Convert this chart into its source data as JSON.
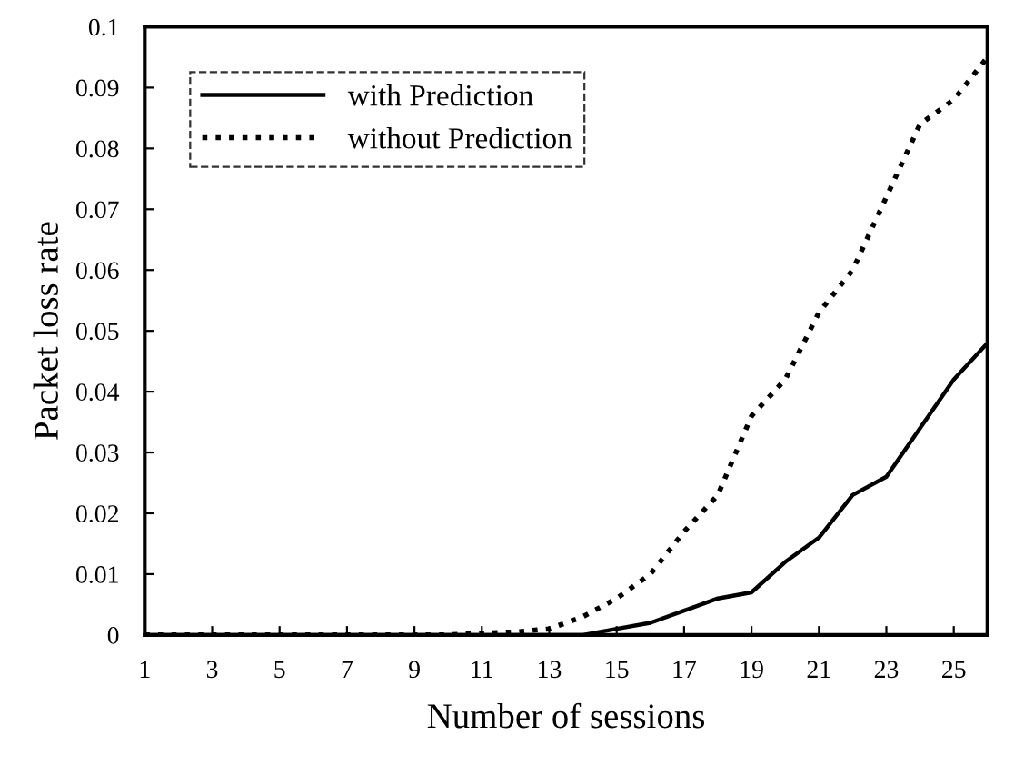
{
  "chart_data": {
    "type": "line",
    "xlabel": "Number of sessions",
    "ylabel": "Packet loss rate",
    "x": [
      1,
      2,
      3,
      4,
      5,
      6,
      7,
      8,
      9,
      10,
      11,
      12,
      13,
      14,
      15,
      16,
      17,
      18,
      19,
      20,
      21,
      22,
      23,
      24,
      25,
      26
    ],
    "series": [
      {
        "name": "with Prediction",
        "color": "#000000",
        "line_style": "solid",
        "values": [
          0,
          0,
          0,
          0,
          0,
          0,
          0,
          0,
          0,
          0,
          0,
          0,
          0,
          0,
          0.001,
          0.002,
          0.004,
          0.006,
          0.007,
          0.012,
          0.016,
          0.023,
          0.026,
          0.034,
          0.042,
          0.048
        ]
      },
      {
        "name": "without Prediction",
        "color": "#000000",
        "line_style": "dotted",
        "values": [
          0,
          0,
          0,
          0,
          0,
          0,
          0,
          0,
          0,
          0,
          0.0003,
          0.0005,
          0.001,
          0.003,
          0.006,
          0.01,
          0.017,
          0.023,
          0.036,
          0.042,
          0.053,
          0.06,
          0.072,
          0.084,
          0.088,
          0.095
        ]
      }
    ],
    "xlim": [
      1,
      26
    ],
    "xticks": [
      1,
      3,
      5,
      7,
      9,
      11,
      13,
      15,
      17,
      19,
      21,
      23,
      25
    ],
    "ylim": [
      0,
      0.1
    ],
    "yticks": [
      0,
      0.01,
      0.02,
      0.03,
      0.04,
      0.05,
      0.06,
      0.07,
      0.08,
      0.09,
      0.1
    ],
    "grid": false,
    "legend": "top left",
    "marker": "none"
  }
}
